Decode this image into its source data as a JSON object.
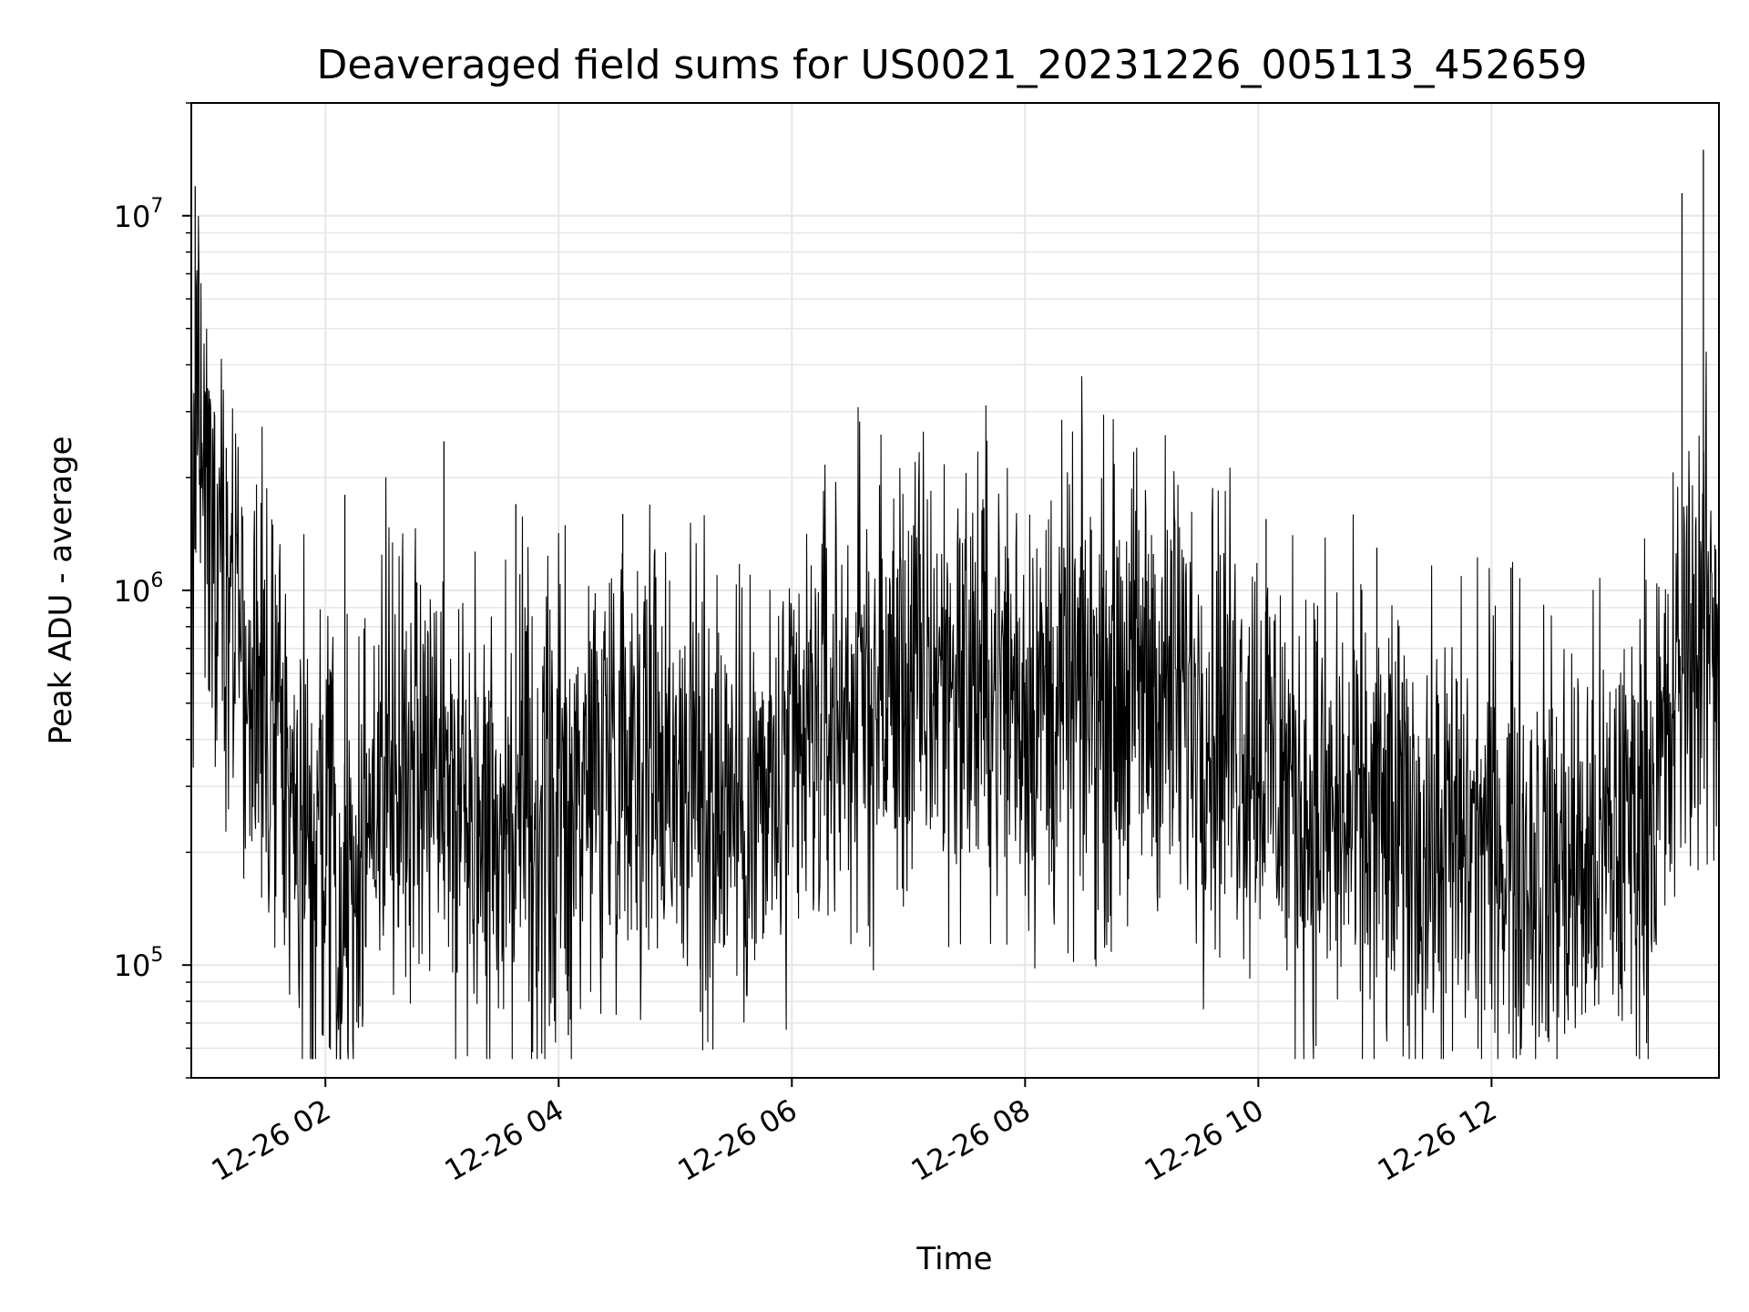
{
  "chart_data": {
    "type": "line",
    "title": "Deaveraged field sums for US0021_20231226_005113_452659",
    "xlabel": "Time",
    "ylabel": "Peak ADU - average",
    "x_range": [
      "2023-12-26 00:51",
      "2023-12-26 13:57"
    ],
    "y_range": [
      50000,
      20000000
    ],
    "yscale": "log",
    "grid": true,
    "line_color": "#000000",
    "x_ticks": [
      {
        "value": "2023-12-26 02:00",
        "label": "12-26 02"
      },
      {
        "value": "2023-12-26 04:00",
        "label": "12-26 04"
      },
      {
        "value": "2023-12-26 06:00",
        "label": "12-26 06"
      },
      {
        "value": "2023-12-26 08:00",
        "label": "12-26 08"
      },
      {
        "value": "2023-12-26 10:00",
        "label": "12-26 10"
      },
      {
        "value": "2023-12-26 12:00",
        "label": "12-26 12"
      }
    ],
    "y_ticks": [
      {
        "value": 100000,
        "base": "10",
        "exp": "5"
      },
      {
        "value": 1000000,
        "base": "10",
        "exp": "6"
      },
      {
        "value": 10000000,
        "base": "10",
        "exp": "7"
      }
    ],
    "series": [
      {
        "x": [
          "2023-12-26 00:51",
          "2023-12-26 00:55",
          "2023-12-26 01:00",
          "2023-12-26 01:05",
          "2023-12-26 01:10",
          "2023-12-26 01:15",
          "2023-12-26 01:20",
          "2023-12-26 01:30",
          "2023-12-26 01:40",
          "2023-12-26 01:50",
          "2023-12-26 02:00",
          "2023-12-26 02:15",
          "2023-12-26 02:30",
          "2023-12-26 02:45",
          "2023-12-26 03:00",
          "2023-12-26 03:15",
          "2023-12-26 03:30",
          "2023-12-26 03:45",
          "2023-12-26 04:00",
          "2023-12-26 04:15",
          "2023-12-26 04:30",
          "2023-12-26 04:45",
          "2023-12-26 05:00",
          "2023-12-26 05:15",
          "2023-12-26 05:30",
          "2023-12-26 05:45",
          "2023-12-26 06:00",
          "2023-12-26 06:15",
          "2023-12-26 06:30",
          "2023-12-26 06:45",
          "2023-12-26 07:00",
          "2023-12-26 07:15",
          "2023-12-26 07:30",
          "2023-12-26 07:45",
          "2023-12-26 08:00",
          "2023-12-26 08:15",
          "2023-12-26 08:30",
          "2023-12-26 08:45",
          "2023-12-26 09:00",
          "2023-12-26 09:15",
          "2023-12-26 09:30",
          "2023-12-26 09:45",
          "2023-12-26 10:00",
          "2023-12-26 10:15",
          "2023-12-26 10:30",
          "2023-12-26 10:45",
          "2023-12-26 11:00",
          "2023-12-26 11:15",
          "2023-12-26 11:30",
          "2023-12-26 11:45",
          "2023-12-26 12:00",
          "2023-12-26 12:15",
          "2023-12-26 12:30",
          "2023-12-26 12:45",
          "2023-12-26 13:00",
          "2023-12-26 13:15",
          "2023-12-26 13:30",
          "2023-12-26 13:40",
          "2023-12-26 13:50",
          "2023-12-26 13:57"
        ],
        "y": [
          1500000,
          3000000,
          1800000,
          1400000,
          1200000,
          900000,
          500000,
          400000,
          300000,
          220000,
          200000,
          180000,
          350000,
          400000,
          320000,
          280000,
          250000,
          230000,
          250000,
          330000,
          420000,
          400000,
          350000,
          300000,
          280000,
          260000,
          300000,
          450000,
          500000,
          520000,
          550000,
          600000,
          580000,
          560000,
          520000,
          500000,
          520000,
          550000,
          560000,
          540000,
          500000,
          460000,
          400000,
          300000,
          250000,
          240000,
          230000,
          220000,
          200000,
          210000,
          220000,
          200000,
          190000,
          180000,
          200000,
          250000,
          350000,
          700000,
          800000,
          700000
        ]
      }
    ],
    "spikes": [
      {
        "x": "2023-12-26 00:53",
        "y": 12000000
      },
      {
        "x": "2023-12-26 00:58",
        "y": 3400000
      },
      {
        "x": "2023-12-26 01:09",
        "y": 2400000
      },
      {
        "x": "2023-12-26 02:10",
        "y": 1800000
      },
      {
        "x": "2023-12-26 03:01",
        "y": 2500000
      },
      {
        "x": "2023-12-26 03:38",
        "y": 1700000
      },
      {
        "x": "2023-12-26 04:33",
        "y": 1600000
      },
      {
        "x": "2023-12-26 07:06",
        "y": 1250000
      },
      {
        "x": "2023-12-26 09:06",
        "y": 1250000
      },
      {
        "x": "2023-12-26 10:04",
        "y": 1550000
      },
      {
        "x": "2023-12-26 11:01",
        "y": 1300000
      },
      {
        "x": "2023-12-26 12:10",
        "y": 1150000
      },
      {
        "x": "2023-12-26 13:38",
        "y": 11500000
      },
      {
        "x": "2023-12-26 13:49",
        "y": 15000000
      }
    ],
    "dips": [
      {
        "x": "2023-12-26 02:17",
        "y": 68000
      },
      {
        "x": "2023-12-26 04:05",
        "y": 65000
      },
      {
        "x": "2023-12-26 05:13",
        "y": 75000
      }
    ]
  }
}
